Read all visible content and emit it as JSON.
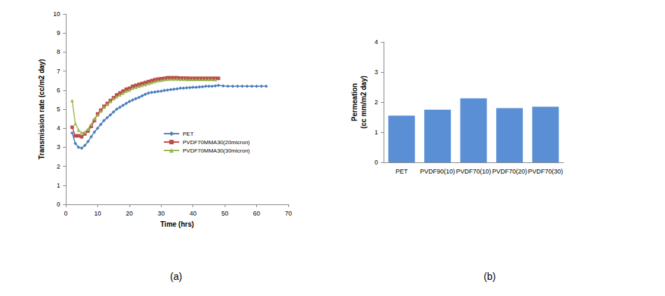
{
  "chart_data": [
    {
      "type": "line",
      "title": "(a)",
      "x_label": "Time (hrs)",
      "y_label": "Transmission rate (cc/m2 day)",
      "xlim": [
        0,
        70
      ],
      "xticks": [
        0,
        10,
        20,
        30,
        40,
        50,
        60,
        70
      ],
      "ylim": [
        0,
        10
      ],
      "yticks": [
        0,
        1,
        2,
        3,
        4,
        5,
        6,
        7,
        8,
        9,
        10
      ],
      "grid": false,
      "legend": "center",
      "series": [
        {
          "name": "PET",
          "color": "#4a7ebb",
          "marker": "diamond",
          "line_style": "solid",
          "x": [
            2,
            3,
            4,
            5,
            6,
            7,
            8,
            9,
            10,
            11,
            12,
            13,
            14,
            15,
            16,
            17,
            18,
            19,
            20,
            21,
            22,
            23,
            24,
            25,
            26,
            27,
            28,
            29,
            30,
            31,
            32,
            33,
            34,
            35,
            36,
            37,
            38,
            39,
            40,
            41,
            42,
            43,
            44,
            45,
            46,
            47,
            48,
            49.5,
            51,
            52.5,
            54,
            55.5,
            57,
            58.5,
            60,
            61.5,
            63
          ],
          "values": [
            3.75,
            3.2,
            3.0,
            2.95,
            3.1,
            3.3,
            3.55,
            3.8,
            4.0,
            4.2,
            4.4,
            4.55,
            4.7,
            4.85,
            5.0,
            5.1,
            5.2,
            5.3,
            5.4,
            5.48,
            5.55,
            5.62,
            5.7,
            5.78,
            5.85,
            5.88,
            5.9,
            5.93,
            5.95,
            5.98,
            6.0,
            6.03,
            6.05,
            6.07,
            6.1,
            6.1,
            6.12,
            6.13,
            6.15,
            6.15,
            6.17,
            6.18,
            6.2,
            6.2,
            6.2,
            6.22,
            6.25,
            6.22,
            6.2,
            6.2,
            6.2,
            6.2,
            6.2,
            6.2,
            6.2,
            6.2,
            6.2
          ]
        },
        {
          "name": "PVDF70MMA30(20micron)",
          "color": "#be4b48",
          "marker": "square",
          "line_style": "solid",
          "x": [
            2,
            3,
            4,
            5,
            6,
            7,
            8,
            9,
            10,
            11,
            12,
            13,
            14,
            15,
            16,
            17,
            18,
            19,
            20,
            21,
            22,
            23,
            24,
            25,
            26,
            27,
            28,
            29,
            30,
            31,
            32,
            33,
            34,
            35,
            36,
            37,
            38,
            39,
            40,
            41,
            42,
            43,
            44,
            45,
            46,
            47,
            48
          ],
          "values": [
            4.05,
            3.6,
            3.6,
            3.55,
            3.7,
            3.85,
            4.1,
            4.4,
            4.75,
            4.95,
            5.15,
            5.3,
            5.45,
            5.6,
            5.75,
            5.85,
            5.95,
            6.05,
            6.1,
            6.2,
            6.25,
            6.3,
            6.35,
            6.4,
            6.45,
            6.5,
            6.55,
            6.58,
            6.6,
            6.62,
            6.65,
            6.65,
            6.65,
            6.65,
            6.63,
            6.63,
            6.63,
            6.62,
            6.62,
            6.62,
            6.62,
            6.62,
            6.62,
            6.62,
            6.62,
            6.62,
            6.62
          ]
        },
        {
          "name": "PVDF70MMA30(30micron)",
          "color": "#98b954",
          "marker": "triangle",
          "line_style": "solid",
          "x": [
            2,
            3,
            4,
            5,
            6,
            7,
            8,
            9,
            10,
            11,
            12,
            13,
            14,
            15,
            16,
            17,
            18,
            19,
            20,
            21,
            22,
            23,
            24,
            25,
            26,
            27,
            28,
            29,
            30,
            31,
            32,
            33,
            34,
            35,
            36,
            37,
            38,
            39,
            40,
            41,
            42,
            43,
            44,
            45,
            46,
            47
          ],
          "values": [
            5.45,
            4.25,
            3.9,
            3.75,
            3.8,
            3.95,
            4.2,
            4.5,
            4.7,
            4.9,
            5.1,
            5.25,
            5.4,
            5.55,
            5.65,
            5.75,
            5.85,
            5.95,
            6.0,
            6.1,
            6.15,
            6.2,
            6.25,
            6.3,
            6.35,
            6.4,
            6.45,
            6.5,
            6.52,
            6.55,
            6.57,
            6.58,
            6.58,
            6.58,
            6.57,
            6.57,
            6.56,
            6.56,
            6.56,
            6.56,
            6.56,
            6.56,
            6.56,
            6.56,
            6.56,
            6.55
          ]
        }
      ]
    },
    {
      "type": "bar",
      "title": "(b)",
      "y_label": "Permeation\n(cc mm/m2 day)",
      "categories": [
        "PET",
        "PVDF90(10)",
        "PVDF70(10)",
        "PVDF70(20)",
        "PVDF70(30)"
      ],
      "values": [
        1.55,
        1.75,
        2.13,
        1.8,
        1.85
      ],
      "color": "#5b8fd5",
      "ylim": [
        0,
        4
      ],
      "yticks": [
        0,
        1,
        2,
        3,
        4
      ],
      "grid": false
    }
  ]
}
